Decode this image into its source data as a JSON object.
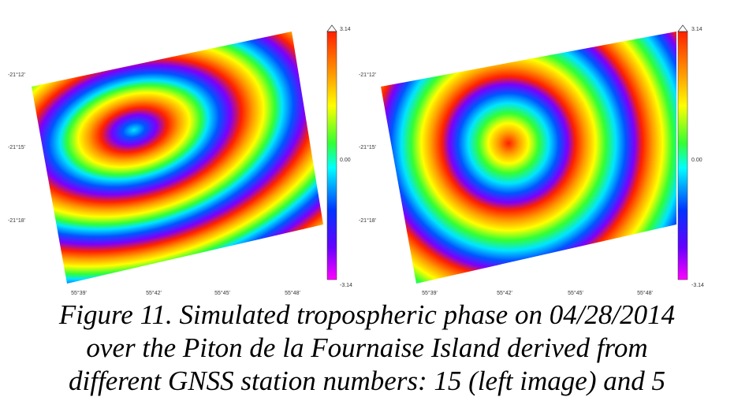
{
  "panels": [
    {
      "y_labels": [
        "-21°12'",
        "-21°15'",
        "-21°18'"
      ],
      "x_labels": [
        "55°39'",
        "55°42'",
        "55°45'",
        "55°48'"
      ],
      "colorbar": [
        "3.14",
        "0.00",
        "-3.14"
      ]
    },
    {
      "y_labels": [
        "-21°12'",
        "-21°15'",
        "-21°18'"
      ],
      "x_labels": [
        "55°39'",
        "55°42'",
        "55°45'",
        "55°48'"
      ],
      "colorbar": [
        "3.14",
        "0.00",
        "-3.14"
      ]
    }
  ],
  "caption": [
    "Figure 11. Simulated tropospheric phase on 04/28/2014",
    "over the Piton de la Fournaise Island derived from",
    "different GNSS station numbers: 15 (left image) and 5"
  ]
}
